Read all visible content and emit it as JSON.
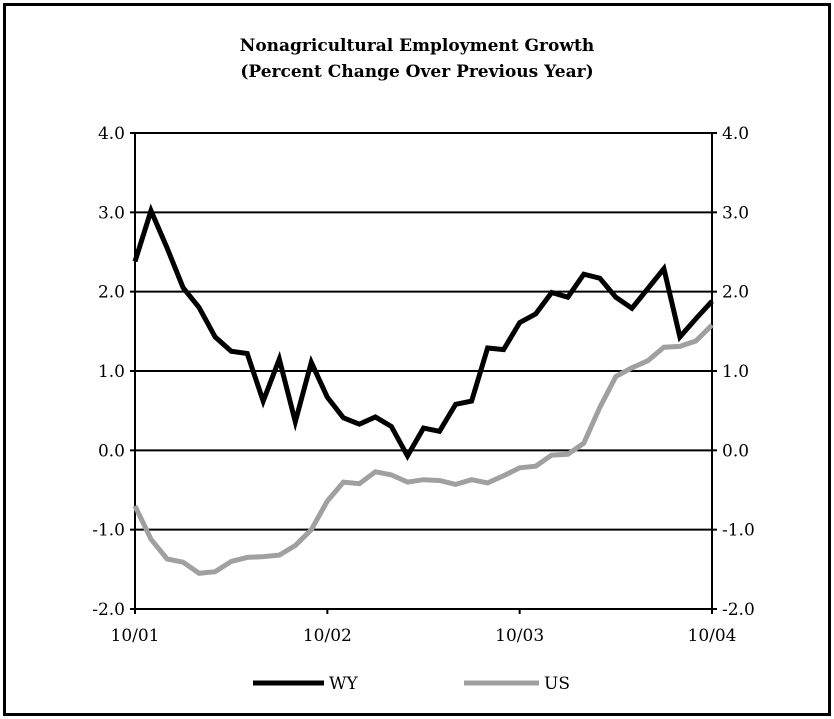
{
  "chart_data": {
    "type": "line",
    "title": "Nonagricultural Employment Growth",
    "subtitle": "(Percent Change Over Previous Year)",
    "xlabel": "",
    "ylabel": "",
    "ylim": [
      -2.0,
      4.0
    ],
    "yticks": [
      "4.0",
      "3.0",
      "2.0",
      "1.0",
      "0.0",
      "-1.0",
      "-2.0"
    ],
    "xlim": [
      "10/01",
      "10/04"
    ],
    "xticks": [
      {
        "label": "10/01",
        "month": 0
      },
      {
        "label": "10/02",
        "month": 12
      },
      {
        "label": "10/03",
        "month": 24
      },
      {
        "label": "10/04",
        "month": 36
      }
    ],
    "grid": true,
    "legend_position": "bottom",
    "series": [
      {
        "name": "WY",
        "color": "#000000",
        "values": [
          2.38,
          3.02,
          2.55,
          2.05,
          1.8,
          1.43,
          1.25,
          1.22,
          0.62,
          1.15,
          0.36,
          1.11,
          0.67,
          0.41,
          0.33,
          0.42,
          0.3,
          -0.07,
          0.28,
          0.24,
          0.58,
          0.62,
          1.29,
          1.27,
          1.61,
          1.72,
          1.99,
          1.93,
          2.22,
          2.17,
          1.93,
          1.79,
          2.04,
          2.29,
          1.43,
          1.66,
          1.88
        ]
      },
      {
        "name": "US",
        "color": "#a0a0a0",
        "values": [
          -0.7,
          -1.12,
          -1.37,
          -1.41,
          -1.55,
          -1.53,
          -1.4,
          -1.35,
          -1.34,
          -1.32,
          -1.2,
          -1.0,
          -0.64,
          -0.4,
          -0.42,
          -0.27,
          -0.31,
          -0.4,
          -0.37,
          -0.38,
          -0.43,
          -0.37,
          -0.41,
          -0.32,
          -0.22,
          -0.2,
          -0.06,
          -0.05,
          0.09,
          0.54,
          0.93,
          1.04,
          1.13,
          1.3,
          1.31,
          1.38,
          1.58
        ]
      }
    ]
  }
}
